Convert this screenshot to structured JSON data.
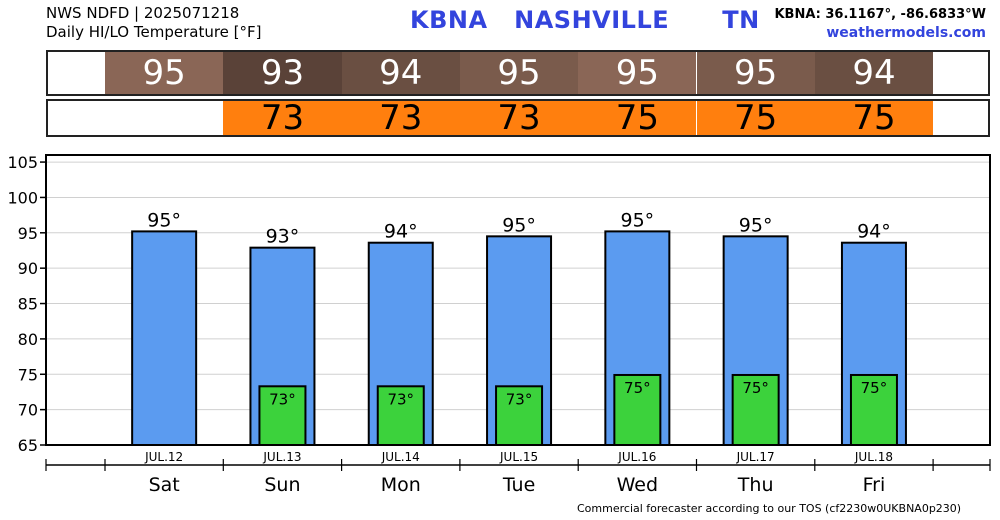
{
  "header": {
    "line1": "NWS NDFD | 2025071218",
    "line2": "Daily HI/LO Temperature [°F]",
    "station": "KBNA",
    "city": "NASHVILLE",
    "state": "TN",
    "coords": "KBNA: 36.1167°, -86.6833°W",
    "site": "weathermodels.com"
  },
  "footer": "Commercial forecaster according to our TOS (cf2230w0UKBNA0p230)",
  "colors": {
    "hi_bar": "#5b9bf0",
    "lo_bar": "#3cd23c",
    "lo_strip": "#ff7f0e",
    "hi_strip": [
      "#8a6656",
      "#5a4238",
      "#6a4f42",
      "#7a5b4c",
      "#8a6656",
      "#7a5b4c",
      "#6a4f42"
    ]
  },
  "chart_data": {
    "type": "bar",
    "categories": [
      "Sat",
      "Sun",
      "Mon",
      "Tue",
      "Wed",
      "Thu",
      "Fri"
    ],
    "dates": [
      "JUL.12",
      "JUL.13",
      "JUL.14",
      "JUL.15",
      "JUL.16",
      "JUL.17",
      "JUL.18"
    ],
    "series": [
      {
        "values": [
          95.2,
          92.9,
          93.6,
          94.5,
          95.2,
          94.5,
          93.6
        ]
      },
      {
        "values": [
          null,
          73.3,
          73.3,
          73.3,
          74.9,
          74.9,
          74.9
        ]
      }
    ],
    "hi_labels": [
      "95°",
      "93°",
      "94°",
      "95°",
      "95°",
      "95°",
      "94°"
    ],
    "lo_labels": [
      null,
      "73°",
      "73°",
      "73°",
      "75°",
      "75°",
      "75°"
    ],
    "hi_strip": [
      "95",
      "93",
      "94",
      "95",
      "95",
      "95",
      "94"
    ],
    "lo_strip": [
      null,
      "73",
      "73",
      "73",
      "75",
      "75",
      "75"
    ],
    "yticks": [
      65,
      70,
      75,
      80,
      85,
      90,
      95,
      100,
      105
    ],
    "ylim": [
      65,
      106
    ],
    "grid": true
  }
}
